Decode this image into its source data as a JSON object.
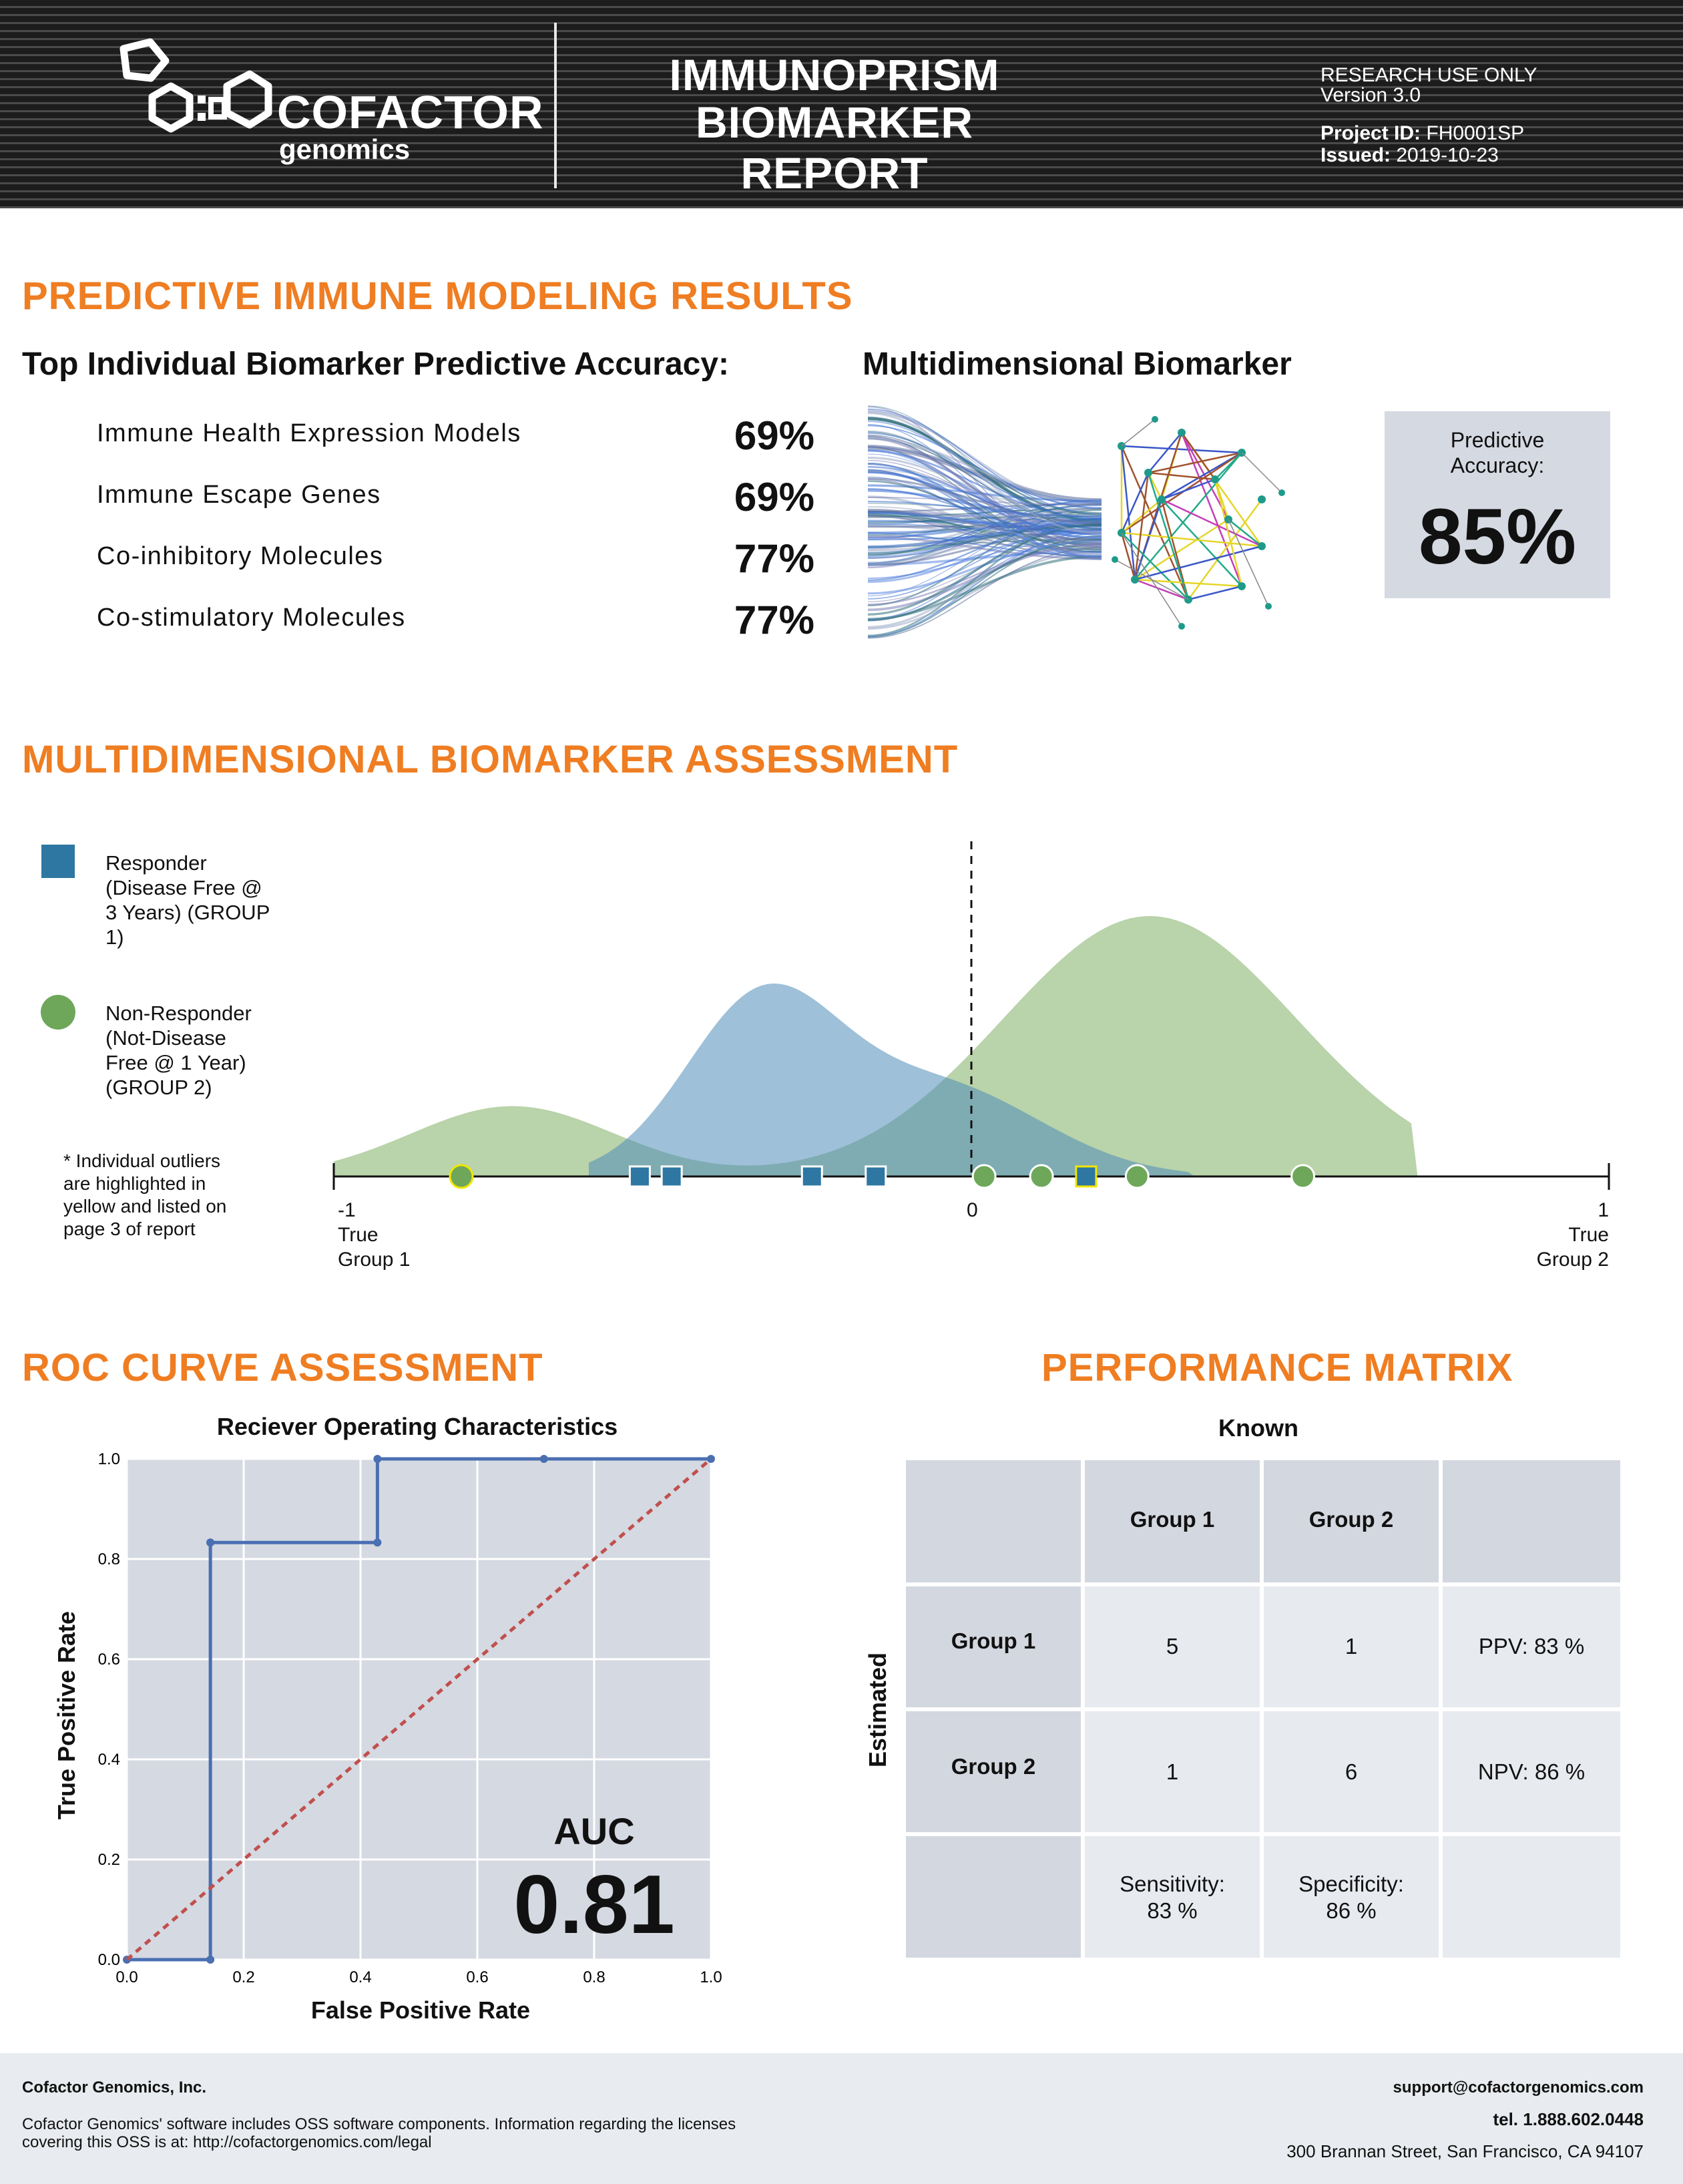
{
  "header": {
    "logo_name": "COFACTOR",
    "logo_sub": "genomics",
    "title_line1": "IMMUNOPRISM",
    "title_line2": "BIOMARKER REPORT",
    "research_use": "RESEARCH USE ONLY",
    "version": "Version 3.0",
    "project_label": "Project ID:",
    "project_value": "FH0001SP",
    "issued_label": "Issued:",
    "issued_value": "2019-10-23"
  },
  "predictive": {
    "section_title": "PREDICTIVE IMMUNE MODELING RESULTS",
    "left_title": "Top Individual Biomarker Predictive Accuracy:",
    "metrics": [
      {
        "label": "Immune Health Expression Models",
        "value": "69%"
      },
      {
        "label": "Immune Escape Genes",
        "value": "69%"
      },
      {
        "label": "Co-inhibitory Molecules",
        "value": "77%"
      },
      {
        "label": "Co-stimulatory Molecules",
        "value": "77%"
      }
    ],
    "right_title": "Multidimensional Biomarker",
    "box_label_line1": "Predictive",
    "box_label_line2": "Accuracy:",
    "box_value": "85%"
  },
  "assessment": {
    "section_title": "MULTIDIMENSIONAL BIOMARKER ASSESSMENT",
    "legend": [
      {
        "lines": [
          "Responder",
          "(Disease Free @",
          "3 Years) (GROUP",
          "1)"
        ],
        "color": "#2e77a3",
        "shape": "square"
      },
      {
        "lines": [
          "Non-Responder",
          "(Not-Disease",
          "Free @ 1 Year)",
          "(GROUP 2)"
        ],
        "color": "#6ea75a",
        "shape": "circle"
      }
    ],
    "note_lines": [
      "* Individual outliers",
      "are highlighted in",
      "yellow and listed on",
      "page 3 of report"
    ],
    "axis": {
      "left_value": "-1",
      "left_line2": "True",
      "left_line3": "Group 1",
      "mid_value": "0",
      "right_value": "1",
      "right_line2": "True",
      "right_line3": "Group 2"
    },
    "points": [
      {
        "group": 2,
        "x": -0.8,
        "outlier": true
      },
      {
        "group": 1,
        "x": -0.52,
        "outlier": false
      },
      {
        "group": 1,
        "x": -0.47,
        "outlier": false
      },
      {
        "group": 1,
        "x": -0.25,
        "outlier": false
      },
      {
        "group": 1,
        "x": -0.15,
        "outlier": false
      },
      {
        "group": 2,
        "x": 0.02,
        "outlier": false
      },
      {
        "group": 2,
        "x": 0.11,
        "outlier": false
      },
      {
        "group": 1,
        "x": 0.18,
        "outlier": true
      },
      {
        "group": 2,
        "x": 0.26,
        "outlier": false
      },
      {
        "group": 2,
        "x": 0.52,
        "outlier": false
      }
    ]
  },
  "roc": {
    "section_title": "ROC CURVE ASSESSMENT",
    "auc_label": "AUC",
    "auc_value": "0.81",
    "chart_data": {
      "type": "line",
      "title": "Reciever Operating Characteristics",
      "xlabel": "False Positive Rate",
      "ylabel": "True Positive Rate",
      "xlim": [
        0,
        1
      ],
      "ylim": [
        0,
        1
      ],
      "xticks": [
        "0.0",
        "0.2",
        "0.4",
        "0.6",
        "0.8",
        "1.0"
      ],
      "yticks": [
        "0.0",
        "0.2",
        "0.4",
        "0.6",
        "0.8",
        "1.0"
      ],
      "grid": true,
      "series": [
        {
          "x": [
            0,
            0.143,
            0.143,
            0.143,
            0.429,
            0.429,
            0.714,
            1.0
          ],
          "y": [
            0,
            0,
            0.833,
            0.833,
            0.833,
            1.0,
            1.0,
            1.0
          ],
          "color": "#4a6fb2",
          "style": "solid"
        },
        {
          "x": [
            0,
            1
          ],
          "y": [
            0,
            1
          ],
          "color": "#c0504d",
          "style": "dashed"
        }
      ]
    }
  },
  "matrix": {
    "section_title": "PERFORMANCE MATRIX",
    "known_label": "Known",
    "estimated_label": "Estimated",
    "col_headers": [
      "Group 1",
      "Group 2"
    ],
    "row_headers": [
      "Group 1",
      "Group 2"
    ],
    "cells": [
      [
        "5",
        "1"
      ],
      [
        "1",
        "6"
      ]
    ],
    "row_metrics": [
      "PPV: 83 %",
      "NPV: 86 %"
    ],
    "col_metrics": [
      {
        "line1": "Sensitivity:",
        "line2": "83 %"
      },
      {
        "line1": "Specificity:",
        "line2": "86 %"
      }
    ]
  },
  "footer": {
    "company": "Cofactor Genomics, Inc.",
    "notice_line1": "Cofactor Genomics' software includes OSS software components. Information regarding the licenses",
    "notice_line2": "covering this OSS is at: http://cofactorgenomics.com/legal",
    "email": "support@cofactorgenomics.com",
    "phone": "tel. 1.888.602.0448",
    "address": "300 Brannan Street, San Francisco, CA 94107"
  }
}
